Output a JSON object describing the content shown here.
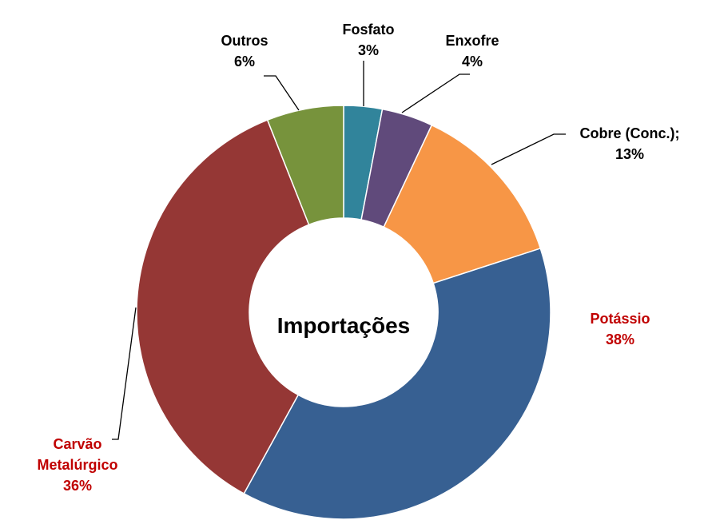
{
  "chart_data": {
    "type": "donut",
    "center_label": "Importações",
    "categories": [
      "Fosfato",
      "Enxofre",
      "Cobre (Conc.);",
      "Potássio",
      "Carvão Metalúrgico",
      "Outros"
    ],
    "values": [
      3,
      4,
      13,
      38,
      36,
      6
    ],
    "value_labels": [
      "3%",
      "4%",
      "13%",
      "38%",
      "36%",
      "6%"
    ],
    "colors": [
      "#31849b",
      "#604a7b",
      "#f79646",
      "#376092",
      "#953735",
      "#77933c"
    ],
    "label_colors": [
      "#000000",
      "#000000",
      "#000000",
      "#c00000",
      "#c00000",
      "#000000"
    ]
  }
}
